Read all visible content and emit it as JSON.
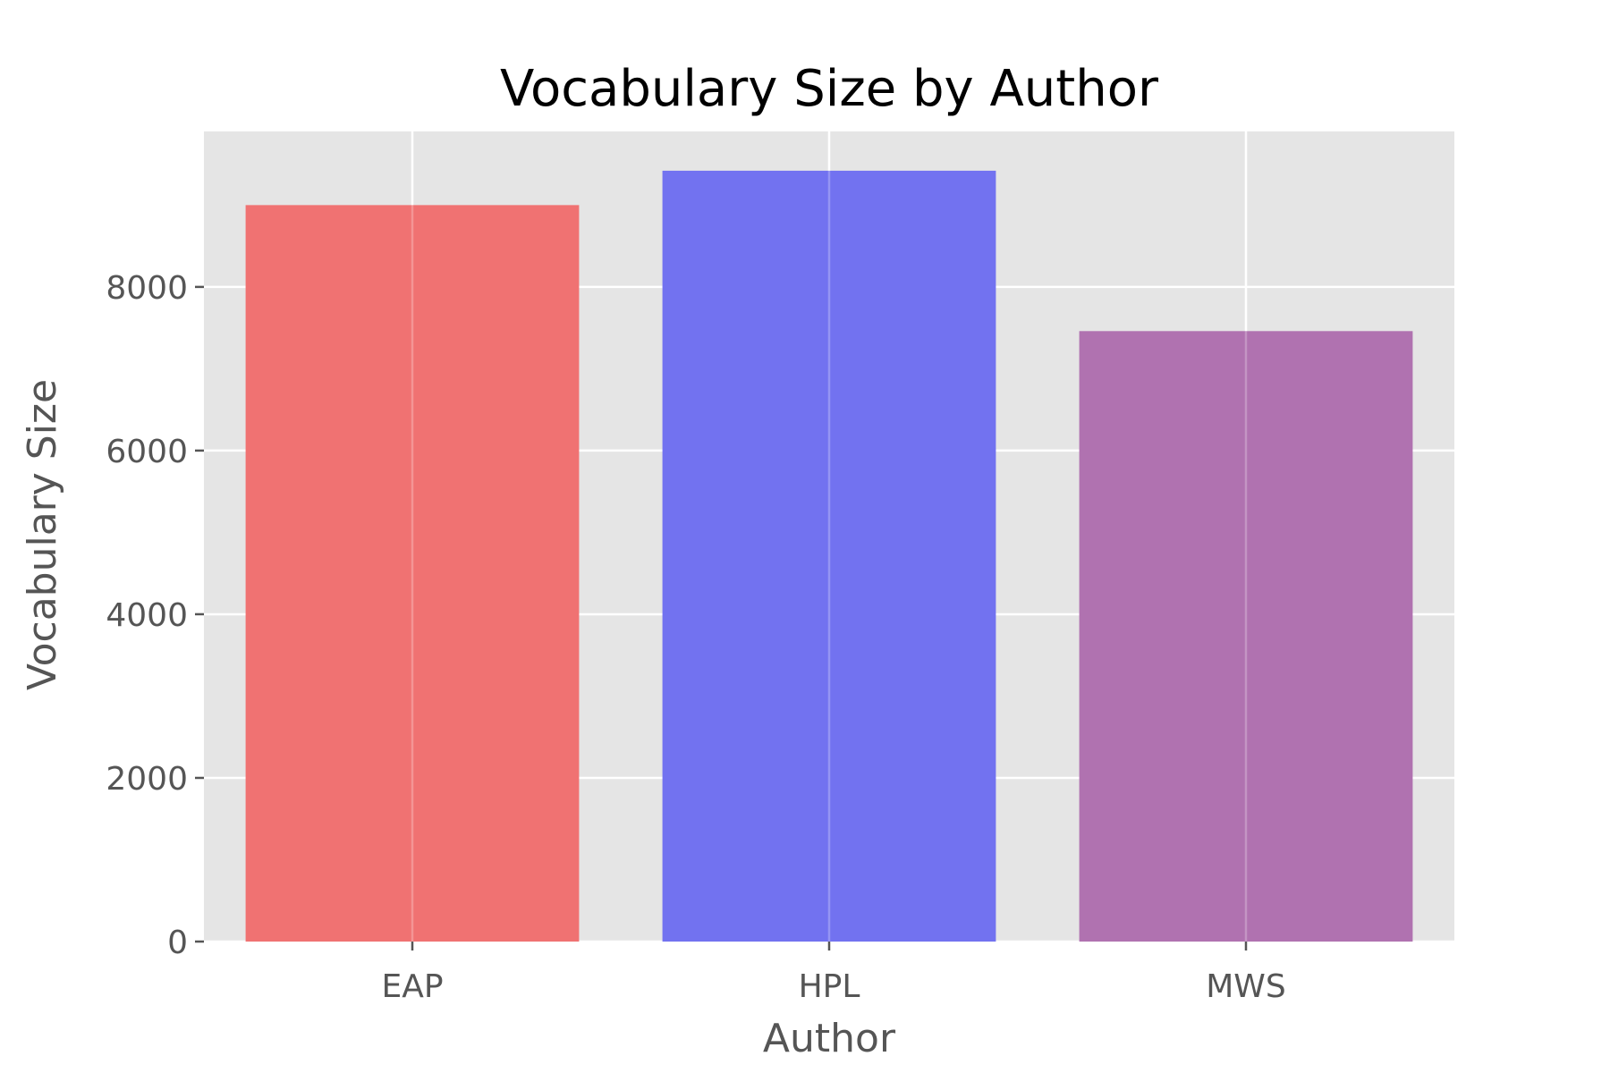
{
  "chart_data": {
    "type": "bar",
    "title": "Vocabulary Size by Author",
    "xlabel": "Author",
    "ylabel": "Vocabulary Size",
    "categories": [
      "EAP",
      "HPL",
      "MWS"
    ],
    "values": [
      9000,
      9420,
      7460
    ],
    "ylim": [
      0,
      9900
    ],
    "yticks": [
      0,
      2000,
      4000,
      6000,
      8000
    ],
    "grid": true,
    "colors": {
      "plot_background": "#e5e5e5",
      "bars": [
        "#f07272",
        "#7272f0",
        "#b072b0"
      ]
    }
  }
}
